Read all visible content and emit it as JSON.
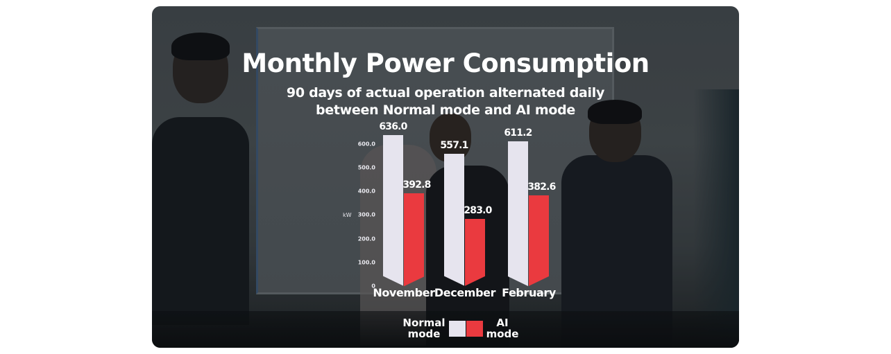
{
  "chart_data": {
    "type": "bar",
    "title": "Monthly Power Consumption",
    "subtitle": [
      "90 days of actual operation alternated daily",
      "between Normal mode and AI mode"
    ],
    "xlabel": "",
    "ylabel": "kW",
    "ylim": [
      0,
      650
    ],
    "yticks": [
      "0",
      "100.0",
      "200.0",
      "300.0",
      "400.0",
      "500.0",
      "600.0"
    ],
    "categories": [
      "November",
      "December",
      "February"
    ],
    "series": [
      {
        "name": "Normal mode",
        "color": "#e6e4ee",
        "values": [
          636.0,
          557.1,
          611.2
        ],
        "labels": [
          "636.0",
          "557.1",
          "611.2"
        ]
      },
      {
        "name": "AI mode",
        "color": "#ea3a3f",
        "values": [
          392.8,
          283.0,
          382.6
        ],
        "labels": [
          "392.8",
          "283.0",
          "382.6"
        ]
      }
    ],
    "grid": false,
    "legend_position": "bottom"
  },
  "legend": {
    "normal": [
      "Normal",
      "mode"
    ],
    "ai": [
      "AI",
      "mode"
    ]
  },
  "colors": {
    "normal": "#e6e4ee",
    "ai": "#ea3a3f",
    "text": "#ffffff"
  }
}
